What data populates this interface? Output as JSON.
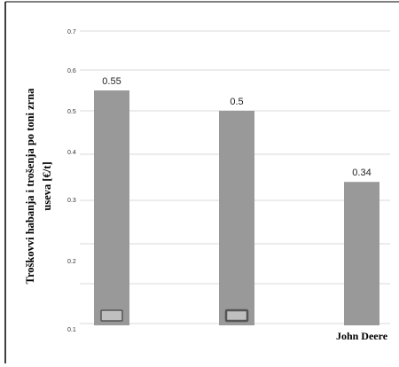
{
  "chart_data": {
    "type": "bar",
    "ylabel_lines": [
      "Troškovvi habanja i trošenja po toni zrna",
      "useva  [€/t]"
    ],
    "y_ticks": [
      "0.1",
      "0.2",
      "0.3",
      "0.4",
      "0.5",
      "0.6",
      "0.7"
    ],
    "categories": [
      "",
      "",
      "John Deere"
    ],
    "values": [
      0.55,
      0.5,
      0.34
    ],
    "data_labels": [
      "0.55",
      "0.5",
      "0.34"
    ],
    "ylim": [
      0.1,
      0.7
    ],
    "grid": true,
    "colors": {
      "bar": "#999999",
      "grid": "#d9d9d9",
      "frame": "#000000",
      "marker": "#bfbfbf",
      "marker_border": "#555555"
    }
  }
}
